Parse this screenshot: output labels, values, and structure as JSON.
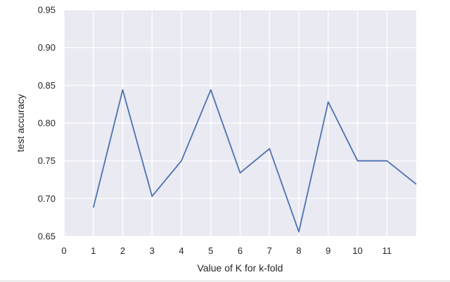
{
  "chart_data": {
    "type": "line",
    "title": "",
    "xlabel": "Value of K for k-fold",
    "ylabel": "test accuracy",
    "x_ticks": [
      "0",
      "1",
      "2",
      "3",
      "4",
      "5",
      "6",
      "7",
      "8",
      "9",
      "10",
      "11"
    ],
    "y_ticks": [
      "0.65",
      "0.70",
      "0.75",
      "0.80",
      "0.85",
      "0.90",
      "0.95"
    ],
    "xlim": [
      0,
      12
    ],
    "ylim": [
      0.65,
      0.95
    ],
    "grid": true,
    "series": [
      {
        "x": [
          1,
          2,
          3,
          4,
          5,
          6,
          7,
          8,
          9,
          10,
          11,
          12
        ],
        "values": [
          0.688,
          0.844,
          0.703,
          0.75,
          0.844,
          0.734,
          0.766,
          0.656,
          0.828,
          0.75,
          0.75,
          0.719
        ]
      }
    ],
    "colors": {
      "plot_bg": "#eaeaf2",
      "grid": "#ffffff",
      "line": "#4c72b0"
    }
  }
}
